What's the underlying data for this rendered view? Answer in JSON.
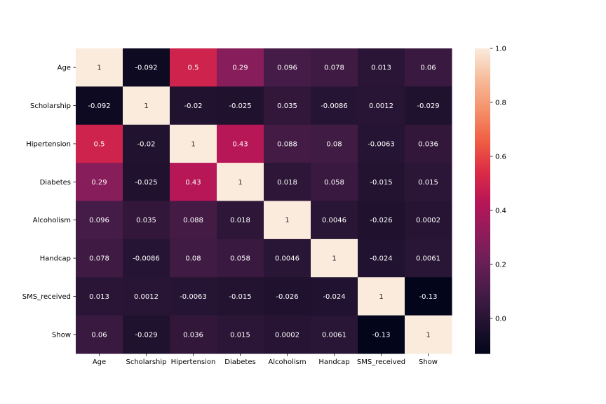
{
  "chart_data": {
    "type": "heatmap",
    "title": "",
    "xlabel": "",
    "ylabel": "",
    "row_labels": [
      "Age",
      "Scholarship",
      "Hipertension",
      "Diabetes",
      "Alcoholism",
      "Handcap",
      "SMS_received",
      "Show"
    ],
    "col_labels": [
      "Age",
      "Scholarship",
      "Hipertension",
      "Diabetes",
      "Alcoholism",
      "Handcap",
      "SMS_received",
      "Show"
    ],
    "values": [
      [
        1,
        -0.092,
        0.5,
        0.29,
        0.096,
        0.078,
        0.013,
        0.06
      ],
      [
        -0.092,
        1,
        -0.02,
        -0.025,
        0.035,
        -0.0086,
        0.0012,
        -0.029
      ],
      [
        0.5,
        -0.02,
        1,
        0.43,
        0.088,
        0.08,
        -0.0063,
        0.036
      ],
      [
        0.29,
        -0.025,
        0.43,
        1,
        0.018,
        0.058,
        -0.015,
        0.015
      ],
      [
        0.096,
        0.035,
        0.088,
        0.018,
        1,
        0.0046,
        -0.026,
        0.0002
      ],
      [
        0.078,
        -0.0086,
        0.08,
        0.058,
        0.0046,
        1,
        -0.024,
        0.0061
      ],
      [
        0.013,
        0.0012,
        -0.0063,
        -0.015,
        -0.026,
        -0.024,
        1,
        -0.13
      ],
      [
        0.06,
        -0.029,
        0.036,
        0.015,
        0.0002,
        0.0061,
        -0.13,
        1
      ]
    ],
    "annotations": [
      [
        "1",
        "-0.092",
        "0.5",
        "0.29",
        "0.096",
        "0.078",
        "0.013",
        "0.06"
      ],
      [
        "-0.092",
        "1",
        "-0.02",
        "-0.025",
        "0.035",
        "-0.0086",
        "0.0012",
        "-0.029"
      ],
      [
        "0.5",
        "-0.02",
        "1",
        "0.43",
        "0.088",
        "0.08",
        "-0.0063",
        "0.036"
      ],
      [
        "0.29",
        "-0.025",
        "0.43",
        "1",
        "0.018",
        "0.058",
        "-0.015",
        "0.015"
      ],
      [
        "0.096",
        "0.035",
        "0.088",
        "0.018",
        "1",
        "0.0046",
        "-0.026",
        "0.0002"
      ],
      [
        "0.078",
        "-0.0086",
        "0.08",
        "0.058",
        "0.0046",
        "1",
        "-0.024",
        "0.0061"
      ],
      [
        "0.013",
        "0.0012",
        "-0.0063",
        "-0.015",
        "-0.026",
        "-0.024",
        "1",
        "-0.13"
      ],
      [
        "0.06",
        "-0.029",
        "0.036",
        "0.015",
        "0.0002",
        "0.0061",
        "-0.13",
        "1"
      ]
    ],
    "colorbar": {
      "vmin": -0.13,
      "vmax": 1.0,
      "ticks": [
        0.0,
        0.2,
        0.4,
        0.6,
        0.8,
        1.0
      ],
      "tick_labels": [
        "0.0",
        "0.2",
        "0.4",
        "0.6",
        "0.8",
        "1.0"
      ],
      "colormap": "rocket",
      "colormap_stops": [
        "#03051a",
        "#221331",
        "#451c47",
        "#6a1f56",
        "#921c5b",
        "#b91657",
        "#dd2c45",
        "#f06043",
        "#f5916b",
        "#f6bc9b",
        "#faebdd"
      ]
    },
    "annotation_colors": {
      "dark_text": "#262626",
      "light_text": "#ffffff"
    }
  }
}
